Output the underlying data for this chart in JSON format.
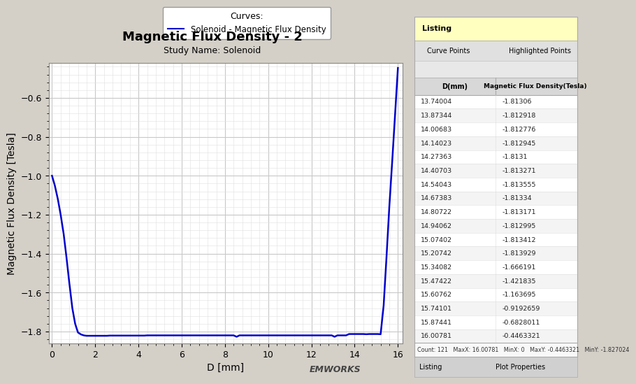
{
  "title": "Magnetic Flux Density - 2",
  "subtitle": "Study Name: Solenoid",
  "xlabel": "D [mm]",
  "ylabel": "Magnetic Flux Density [Tesla]",
  "legend_label": "Solenoid - Magnetic Flux Density",
  "line_color": "#0000cc",
  "line_width": 1.8,
  "xlim": [
    -0.15,
    16.2
  ],
  "ylim": [
    -1.86,
    -0.42
  ],
  "yticks": [
    -0.6,
    -0.8,
    -1.0,
    -1.2,
    -1.4,
    -1.6,
    -1.8
  ],
  "xticks": [
    0,
    2,
    4,
    6,
    8,
    10,
    12,
    14,
    16
  ],
  "grid_color": "#c8c8c8",
  "grid_minor_color": "#e0e0e0",
  "bg_color": "#ffffff",
  "outer_bg": "#d4d0c8",
  "table_bg": "#f8f8f8",
  "table_header_bg": "#e8e8e8",
  "curve_points": [
    [
      0.0,
      -1.0
    ],
    [
      0.13,
      -1.05
    ],
    [
      0.27,
      -1.12
    ],
    [
      0.4,
      -1.2
    ],
    [
      0.54,
      -1.3
    ],
    [
      0.67,
      -1.42
    ],
    [
      0.8,
      -1.55
    ],
    [
      0.94,
      -1.68
    ],
    [
      1.07,
      -1.76
    ],
    [
      1.2,
      -1.805
    ],
    [
      1.34,
      -1.815
    ],
    [
      1.47,
      -1.82
    ],
    [
      1.6,
      -1.822
    ],
    [
      1.74,
      -1.822
    ],
    [
      1.87,
      -1.822
    ],
    [
      2.0,
      -1.822
    ],
    [
      2.14,
      -1.822
    ],
    [
      2.27,
      -1.822
    ],
    [
      2.4,
      -1.822
    ],
    [
      2.54,
      -1.822
    ],
    [
      2.67,
      -1.821
    ],
    [
      2.8,
      -1.821
    ],
    [
      2.94,
      -1.821
    ],
    [
      3.07,
      -1.821
    ],
    [
      3.2,
      -1.821
    ],
    [
      3.34,
      -1.821
    ],
    [
      3.47,
      -1.821
    ],
    [
      3.6,
      -1.821
    ],
    [
      3.74,
      -1.821
    ],
    [
      3.87,
      -1.821
    ],
    [
      4.0,
      -1.821
    ],
    [
      4.14,
      -1.821
    ],
    [
      4.27,
      -1.821
    ],
    [
      4.4,
      -1.82
    ],
    [
      4.54,
      -1.82
    ],
    [
      4.67,
      -1.82
    ],
    [
      4.8,
      -1.82
    ],
    [
      4.94,
      -1.82
    ],
    [
      5.07,
      -1.82
    ],
    [
      5.2,
      -1.82
    ],
    [
      5.34,
      -1.82
    ],
    [
      5.47,
      -1.82
    ],
    [
      5.6,
      -1.82
    ],
    [
      5.74,
      -1.82
    ],
    [
      5.87,
      -1.82
    ],
    [
      6.0,
      -1.82
    ],
    [
      6.14,
      -1.82
    ],
    [
      6.27,
      -1.82
    ],
    [
      6.4,
      -1.82
    ],
    [
      6.54,
      -1.82
    ],
    [
      6.67,
      -1.82
    ],
    [
      6.8,
      -1.82
    ],
    [
      6.94,
      -1.82
    ],
    [
      7.07,
      -1.82
    ],
    [
      7.2,
      -1.82
    ],
    [
      7.34,
      -1.82
    ],
    [
      7.47,
      -1.82
    ],
    [
      7.6,
      -1.82
    ],
    [
      7.74,
      -1.82
    ],
    [
      7.87,
      -1.82
    ],
    [
      8.0,
      -1.82
    ],
    [
      8.14,
      -1.82
    ],
    [
      8.27,
      -1.82
    ],
    [
      8.4,
      -1.82
    ],
    [
      8.54,
      -1.827
    ],
    [
      8.67,
      -1.82
    ],
    [
      8.8,
      -1.82
    ],
    [
      8.94,
      -1.82
    ],
    [
      9.07,
      -1.82
    ],
    [
      9.2,
      -1.82
    ],
    [
      9.34,
      -1.82
    ],
    [
      9.47,
      -1.82
    ],
    [
      9.6,
      -1.82
    ],
    [
      9.74,
      -1.82
    ],
    [
      9.87,
      -1.82
    ],
    [
      10.0,
      -1.82
    ],
    [
      10.14,
      -1.82
    ],
    [
      10.27,
      -1.82
    ],
    [
      10.4,
      -1.82
    ],
    [
      10.54,
      -1.82
    ],
    [
      10.67,
      -1.82
    ],
    [
      10.8,
      -1.82
    ],
    [
      10.94,
      -1.82
    ],
    [
      11.07,
      -1.82
    ],
    [
      11.2,
      -1.82
    ],
    [
      11.34,
      -1.82
    ],
    [
      11.47,
      -1.82
    ],
    [
      11.6,
      -1.82
    ],
    [
      11.74,
      -1.82
    ],
    [
      11.87,
      -1.82
    ],
    [
      12.0,
      -1.82
    ],
    [
      12.14,
      -1.82
    ],
    [
      12.27,
      -1.82
    ],
    [
      12.4,
      -1.82
    ],
    [
      12.54,
      -1.82
    ],
    [
      12.67,
      -1.82
    ],
    [
      12.8,
      -1.82
    ],
    [
      12.94,
      -1.82
    ],
    [
      13.07,
      -1.827
    ],
    [
      13.2,
      -1.82
    ],
    [
      13.34,
      -1.82
    ],
    [
      13.47,
      -1.82
    ],
    [
      13.6,
      -1.82
    ],
    [
      13.74,
      -1.813
    ],
    [
      13.87,
      -1.813
    ],
    [
      14.0,
      -1.813
    ],
    [
      14.14,
      -1.813
    ],
    [
      14.27,
      -1.813
    ],
    [
      14.4,
      -1.813
    ],
    [
      14.54,
      -1.814
    ],
    [
      14.67,
      -1.813
    ],
    [
      14.8,
      -1.813
    ],
    [
      14.94,
      -1.813
    ],
    [
      15.07,
      -1.813
    ],
    [
      15.2,
      -1.814
    ],
    [
      15.34,
      -1.666
    ],
    [
      15.47,
      -1.422
    ],
    [
      15.6,
      -1.164
    ],
    [
      15.74,
      -0.919
    ],
    [
      15.87,
      -0.683
    ],
    [
      16.0,
      -0.446
    ]
  ],
  "table_rows": [
    [
      "13.74004",
      "-1.81306"
    ],
    [
      "13.87344",
      "-1.812918"
    ],
    [
      "14.00683",
      "-1.812776"
    ],
    [
      "14.14023",
      "-1.812945"
    ],
    [
      "14.27363",
      "-1.8131"
    ],
    [
      "14.40703",
      "-1.813271"
    ],
    [
      "14.54043",
      "-1.813555"
    ],
    [
      "14.67383",
      "-1.81334"
    ],
    [
      "14.80722",
      "-1.813171"
    ],
    [
      "14.94062",
      "-1.812995"
    ],
    [
      "15.07402",
      "-1.813412"
    ],
    [
      "15.20742",
      "-1.813929"
    ],
    [
      "15.34082",
      "-1.666191"
    ],
    [
      "15.47422",
      "-1.421835"
    ],
    [
      "15.60762",
      "-1.163695"
    ],
    [
      "15.74101",
      "-0.9192659"
    ],
    [
      "15.87441",
      "-0.6828011"
    ],
    [
      "16.00781",
      "-0.4463321"
    ]
  ],
  "status_text": "Count: 121   MaxX: 16.00781   MinX: 0   MaxY: -0.4463321   MinY: -1.827024",
  "tab_listing": "Listing",
  "tab_plot": "Plot Properties",
  "panel_title": "Listing",
  "tab_curve_points": "Curve Points",
  "tab_highlighted": "Highlighted Points"
}
